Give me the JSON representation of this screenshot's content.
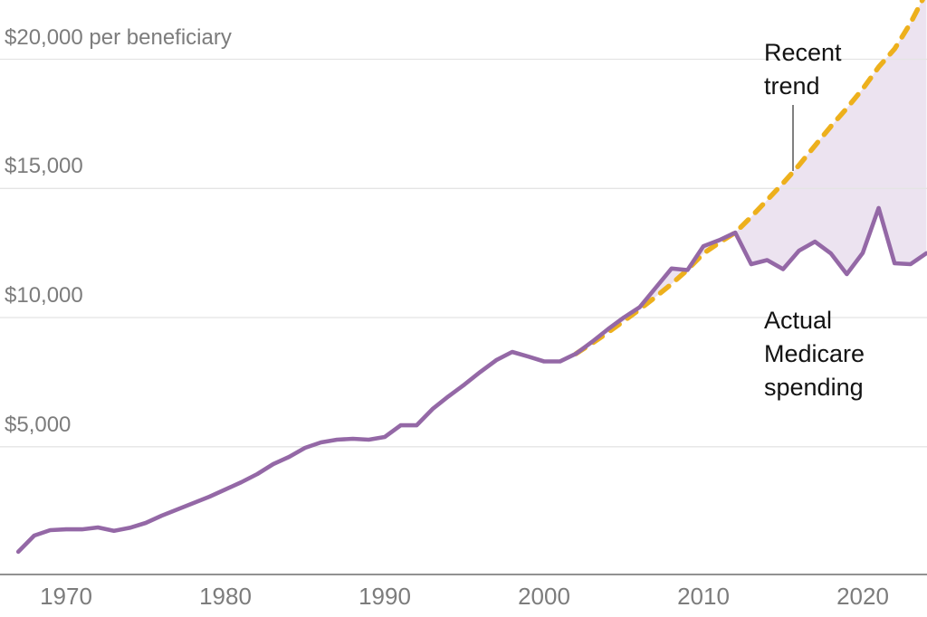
{
  "chart_data": {
    "type": "line",
    "title": "",
    "xlabel": "",
    "ylabel": "per beneficiary (US dollars)",
    "xlim": [
      1966.9,
      2024.6
    ],
    "ylim": [
      0,
      22300
    ],
    "grid": "horizontal",
    "legend_position": "annotated-inline",
    "y_ticks": [
      {
        "value": 20000,
        "label": "$20,000 per beneficiary"
      },
      {
        "value": 15000,
        "label": "$15,000"
      },
      {
        "value": 10000,
        "label": "$10,000"
      },
      {
        "value": 5000,
        "label": "$5,000"
      }
    ],
    "x_ticks": [
      {
        "value": 1970,
        "label": "1970"
      },
      {
        "value": 1980,
        "label": "1980"
      },
      {
        "value": 1990,
        "label": "1990"
      },
      {
        "value": 2000,
        "label": "2000"
      },
      {
        "value": 2010,
        "label": "2010"
      },
      {
        "value": 2020,
        "label": "2020"
      }
    ],
    "series": [
      {
        "name": "Actual Medicare spending",
        "style": "solid",
        "color": "#9468a6",
        "years": [
          1967,
          1968,
          1969,
          1970,
          1971,
          1972,
          1973,
          1974,
          1975,
          1976,
          1977,
          1978,
          1979,
          1980,
          1981,
          1982,
          1983,
          1984,
          1985,
          1986,
          1987,
          1988,
          1989,
          1990,
          1991,
          1992,
          1993,
          1994,
          1995,
          1996,
          1997,
          1998,
          1999,
          2000,
          2001,
          2002,
          2003,
          2004,
          2005,
          2006,
          2007,
          2008,
          2009,
          2010,
          2011,
          2012,
          2013,
          2014,
          2015,
          2016,
          2017,
          2018,
          2019,
          2020,
          2021,
          2022,
          2023,
          2024
        ],
        "values": [
          930,
          1560,
          1770,
          1800,
          1800,
          1875,
          1740,
          1860,
          2050,
          2330,
          2575,
          2820,
          3065,
          3345,
          3625,
          3940,
          4325,
          4605,
          4955,
          5165,
          5270,
          5305,
          5270,
          5375,
          5830,
          5830,
          6460,
          6950,
          7405,
          7895,
          8350,
          8670,
          8490,
          8300,
          8300,
          8600,
          9055,
          9545,
          10000,
          10400,
          11150,
          11900,
          11840,
          12765,
          13000,
          13290,
          12065,
          12225,
          11875,
          12590,
          12940,
          12485,
          11680,
          12500,
          14240,
          12100,
          12065,
          12490
        ]
      },
      {
        "name": "Recent trend",
        "style": "dashed",
        "color": "#edb01c",
        "years": [
          2002,
          2003,
          2004,
          2005,
          2006,
          2007,
          2008,
          2009,
          2010,
          2011,
          2012,
          2013,
          2014,
          2015,
          2016,
          2017,
          2018,
          2019,
          2020,
          2021,
          2022,
          2023,
          2024
        ],
        "values": [
          8600,
          9000,
          9420,
          9860,
          10320,
          10800,
          11300,
          11850,
          12480,
          12900,
          13290,
          13900,
          14550,
          15200,
          15900,
          16650,
          17400,
          18100,
          18850,
          19700,
          20400,
          21400,
          22600
        ]
      }
    ],
    "fill_between": {
      "upper": "Recent trend",
      "lower": "Actual Medicare spending",
      "color": "#ece3f0"
    },
    "annotations": [
      {
        "id": "recent_trend",
        "text": "Recent\ntrend"
      },
      {
        "id": "actual_spending",
        "text": "Actual\nMedicare\nspending"
      }
    ],
    "colors": {
      "actual_line": "#9468a6",
      "trend_line": "#edb01c",
      "fill": "#ece3f0",
      "gridline": "#e4e4e4",
      "axis_line": "#6e6e6e",
      "tick_text": "#7c7c7c",
      "annotation_text": "#131313",
      "pointer_line": "#4a4a4a"
    }
  }
}
